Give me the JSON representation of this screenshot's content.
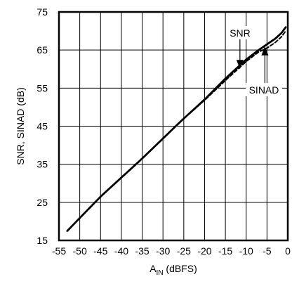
{
  "chart_data": {
    "type": "line",
    "xlabel_main": "A",
    "xlabel_sub": "IN",
    "xlabel_rest": " (dBFS)",
    "ylabel": "SNR, SINAD (dB)",
    "xlim": [
      -55,
      0
    ],
    "ylim": [
      15,
      75
    ],
    "xticks": [
      -55,
      -50,
      -45,
      -40,
      -35,
      -30,
      -25,
      -20,
      -15,
      -10,
      -5,
      0
    ],
    "yticks": [
      15,
      25,
      35,
      45,
      55,
      65,
      75
    ],
    "grid": true,
    "series": [
      {
        "name": "SNR",
        "style": "solid",
        "x": [
          -53,
          -45,
          -35,
          -25.5,
          -20,
          -15,
          -10,
          -7,
          -5,
          -3,
          -1.5,
          -0.5
        ],
        "y": [
          17.5,
          26.5,
          36.5,
          46.5,
          52,
          57.5,
          62.5,
          65,
          66.5,
          68,
          69.5,
          71
        ]
      },
      {
        "name": "SINAD",
        "style": "dashed",
        "x": [
          -53,
          -45,
          -35,
          -25.5,
          -20,
          -15,
          -10,
          -7,
          -5,
          -3,
          -1.5,
          -0.5
        ],
        "y": [
          17.5,
          26.5,
          36.5,
          46.5,
          51.8,
          57,
          62,
          64.5,
          65.5,
          67,
          68.5,
          70
        ]
      }
    ],
    "annotations": [
      {
        "text": "SNR",
        "target_x": -11.5,
        "target_y": 60
      },
      {
        "text": "SINAD",
        "target_x": -5.5,
        "target_y": 66
      }
    ]
  }
}
